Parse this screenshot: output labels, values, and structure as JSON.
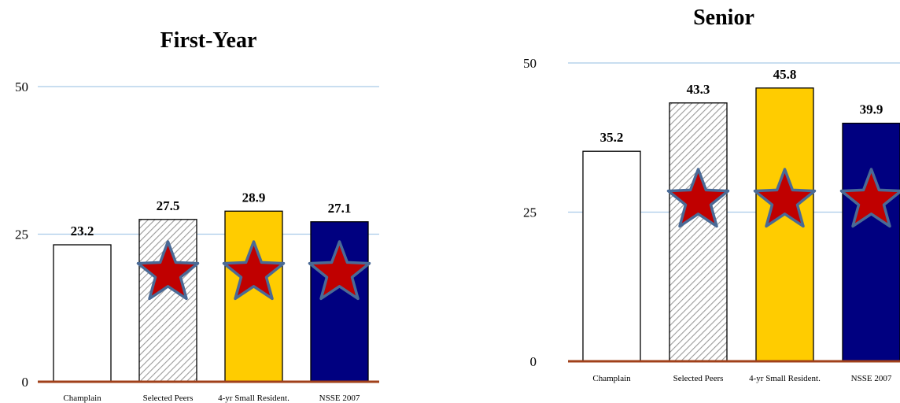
{
  "chart_data": [
    {
      "type": "bar",
      "title": "First-Year",
      "categories": [
        "Champlain",
        "Selected Peers",
        "4-yr Small Resident.",
        "NSSE 2007"
      ],
      "values": [
        23.2,
        27.5,
        28.9,
        27.1
      ],
      "value_labels": [
        "23.2",
        "27.5",
        "28.9",
        "27.1"
      ],
      "ylim": [
        0,
        50
      ],
      "yticks": [
        0,
        25,
        50
      ],
      "ytick_labels": [
        "0",
        "25",
        "50"
      ],
      "bar_colors": [
        "#ffffff",
        "hatched-gray",
        "#ffcc00",
        "#000080"
      ],
      "star_markers_on": [
        "Selected Peers",
        "4-yr Small Resident.",
        "NSSE 2007"
      ],
      "grid": true
    },
    {
      "type": "bar",
      "title": "Senior",
      "categories": [
        "Champlain",
        "Selected Peers",
        "4-yr Small Resident.",
        "NSSE 2007"
      ],
      "values": [
        35.2,
        43.3,
        45.8,
        39.9
      ],
      "value_labels": [
        "35.2",
        "43.3",
        "45.8",
        "39.9"
      ],
      "ylim": [
        0,
        50
      ],
      "yticks": [
        0,
        25,
        50
      ],
      "ytick_labels": [
        "0",
        "25",
        "50"
      ],
      "bar_colors": [
        "#ffffff",
        "hatched-gray",
        "#ffcc00",
        "#000080"
      ],
      "star_markers_on": [
        "Selected Peers",
        "4-yr Small Resident.",
        "NSSE 2007"
      ],
      "grid": true
    }
  ],
  "colors": {
    "gridline": "#a9cbe8",
    "baseline": "#a0401a",
    "star_fill": "#c00000",
    "star_stroke": "#4a6a96",
    "hatch": "#9a9a9a"
  }
}
